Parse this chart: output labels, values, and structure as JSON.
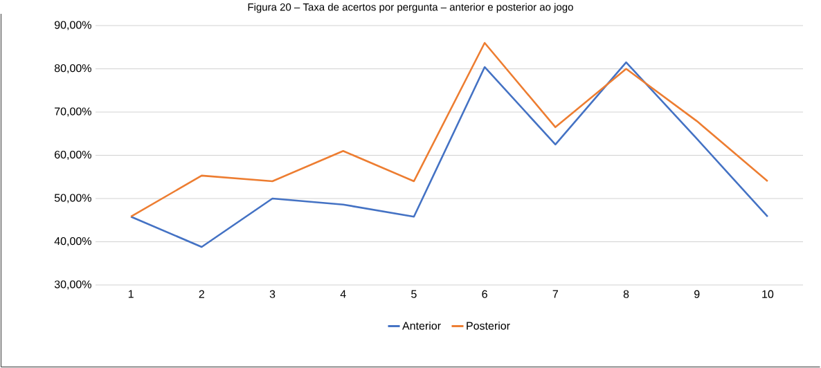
{
  "chart_data": {
    "type": "line",
    "title": "Figura 20 – Taxa de acertos por pergunta – anterior e posterior ao jogo",
    "categories": [
      "1",
      "2",
      "3",
      "4",
      "5",
      "6",
      "7",
      "8",
      "9",
      "10"
    ],
    "series": [
      {
        "name": "Anterior",
        "color": "#4472c4",
        "values": [
          45.8,
          38.8,
          50.0,
          48.6,
          45.8,
          80.4,
          62.5,
          81.5,
          63.8,
          45.8
        ]
      },
      {
        "name": "Posterior",
        "color": "#ed7d31",
        "values": [
          45.8,
          55.3,
          54.0,
          61.0,
          54.0,
          86.0,
          66.5,
          80.0,
          67.9,
          54.0
        ]
      }
    ],
    "ylim": [
      30,
      90
    ],
    "yticks": [
      {
        "value": 30,
        "label": "30,00%"
      },
      {
        "value": 40,
        "label": "40,00%"
      },
      {
        "value": 50,
        "label": "50,00%"
      },
      {
        "value": 60,
        "label": "60,00%"
      },
      {
        "value": 70,
        "label": "70,00%"
      },
      {
        "value": 80,
        "label": "80,00%"
      },
      {
        "value": 90,
        "label": "90,00%"
      }
    ],
    "grid": "y",
    "legend": "bottom",
    "marker": "none",
    "line_style": "solid"
  }
}
